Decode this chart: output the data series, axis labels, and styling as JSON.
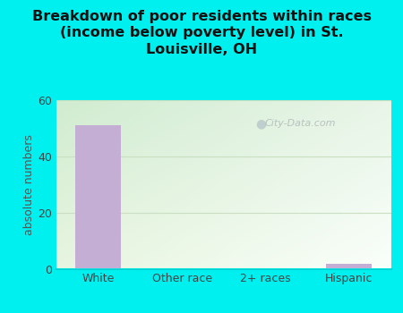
{
  "title": "Breakdown of poor residents within races\n(income below poverty level) in St.\nLouisville, OH",
  "categories": [
    "White",
    "Other race",
    "2+ races",
    "Hispanic"
  ],
  "values": [
    51,
    0,
    0,
    2
  ],
  "bar_color": "#c4aed4",
  "ylabel": "absolute numbers",
  "ylim": [
    0,
    60
  ],
  "yticks": [
    0,
    20,
    40,
    60
  ],
  "bg_outer": "#00f0f0",
  "bg_plot_tl": "#d0ecd0",
  "bg_plot_tr": "#e8f5e8",
  "bg_plot_bl": "#e0eed8",
  "bg_plot_br": "#f8fff8",
  "grid_color": "#c8dfc0",
  "watermark": "City-Data.com",
  "title_fontsize": 11.5,
  "ylabel_fontsize": 9,
  "tick_fontsize": 9,
  "title_color": "#111111"
}
